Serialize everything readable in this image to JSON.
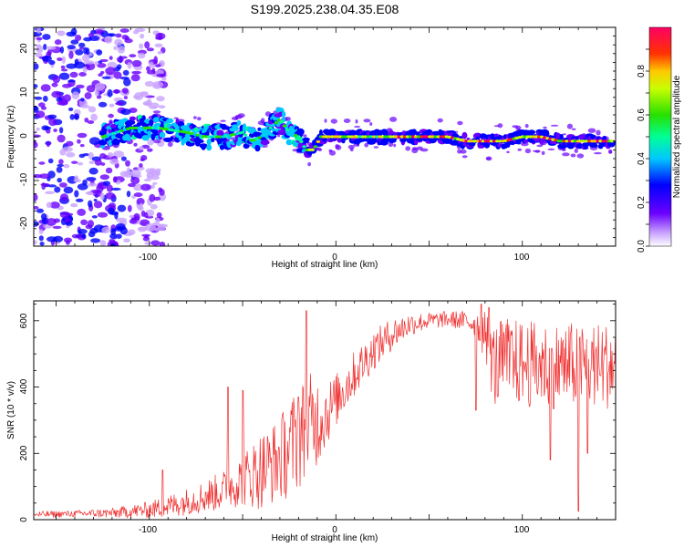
{
  "title": "S199.2025.238.04.35.E08",
  "colors": {
    "snr_line": "#f03030",
    "frame": "#000000"
  },
  "chart_data": [
    {
      "type": "heatmap",
      "name": "spectrogram",
      "xlabel": "Height of straight line (km)",
      "ylabel": "Frequency (Hz)",
      "xlim": [
        -162,
        150
      ],
      "ylim": [
        -25,
        25
      ],
      "xticks": [
        -100,
        0,
        100
      ],
      "yticks": [
        -20,
        -10,
        0,
        10,
        20
      ],
      "xtick_labels": [
        "-100",
        "0",
        "100"
      ],
      "ytick_labels": [
        "-20",
        "-10",
        "0",
        "10",
        "20"
      ],
      "colorbar": {
        "label": "Normalized spectral amplitude",
        "range": [
          0.0,
          1.0
        ],
        "ticks": [
          0.0,
          0.2,
          0.4,
          0.6,
          0.8
        ],
        "tick_labels": [
          "0.0",
          "0.2",
          "0.4",
          "0.6",
          "0.8"
        ],
        "colormap": "rainbow"
      },
      "ridge": {
        "x": [
          -125,
          -110,
          -95,
          -80,
          -70,
          -60,
          -50,
          -45,
          -40,
          -35,
          -30,
          -25,
          -20,
          -16,
          -12,
          -8,
          0,
          20,
          40,
          60,
          70,
          80,
          90,
          100,
          110,
          120,
          130,
          148
        ],
        "freq": [
          0,
          2,
          2,
          1,
          0,
          0,
          1,
          -1,
          0,
          2,
          4,
          1,
          0,
          -3,
          -3,
          0,
          0,
          0,
          0,
          0,
          -1,
          -1,
          -1,
          0,
          0,
          -1,
          -1,
          -1
        ]
      },
      "noise_region_x": [
        -162,
        -100
      ]
    },
    {
      "type": "line",
      "name": "snr",
      "xlabel": "Height of straight line (km)",
      "ylabel": "SNR (10 * v/v)",
      "xlim": [
        -162,
        150
      ],
      "ylim": [
        0,
        660
      ],
      "xticks": [
        -100,
        0,
        100
      ],
      "yticks": [
        0,
        200,
        400,
        600
      ],
      "xtick_labels": [
        "-100",
        "0",
        "100"
      ],
      "ytick_labels": [
        "0",
        "200",
        "400",
        "600"
      ],
      "envelope": {
        "x": [
          -162,
          -140,
          -120,
          -110,
          -100,
          -90,
          -80,
          -70,
          -60,
          -50,
          -45,
          -40,
          -35,
          -30,
          -25,
          -20,
          -15,
          -10,
          -5,
          0,
          10,
          20,
          30,
          40,
          50,
          60,
          70,
          75,
          80,
          85,
          90,
          100,
          110,
          120,
          130,
          140,
          150
        ],
        "mean": [
          15,
          18,
          20,
          25,
          30,
          40,
          55,
          70,
          90,
          120,
          135,
          150,
          165,
          185,
          215,
          250,
          275,
          300,
          320,
          360,
          440,
          510,
          560,
          590,
          600,
          605,
          600,
          590,
          560,
          460,
          480,
          470,
          465,
          465,
          465,
          465,
          465
        ],
        "amp": [
          10,
          10,
          15,
          20,
          25,
          35,
          40,
          50,
          60,
          80,
          100,
          120,
          120,
          130,
          150,
          160,
          170,
          140,
          100,
          80,
          70,
          60,
          50,
          35,
          25,
          25,
          30,
          40,
          80,
          150,
          150,
          150,
          150,
          150,
          150,
          150,
          150
        ]
      },
      "peaks": [
        {
          "x": -93,
          "y": 150
        },
        {
          "x": -58,
          "y": 400
        },
        {
          "x": -50,
          "y": 390
        },
        {
          "x": -20,
          "y": 370
        },
        {
          "x": -16,
          "y": 630
        },
        {
          "x": 78,
          "y": 650
        },
        {
          "x": 82,
          "y": 640
        }
      ],
      "dips": [
        {
          "x": 75,
          "y": 330
        },
        {
          "x": 115,
          "y": 180
        },
        {
          "x": 130,
          "y": 25
        },
        {
          "x": 135,
          "y": 200
        }
      ]
    }
  ]
}
